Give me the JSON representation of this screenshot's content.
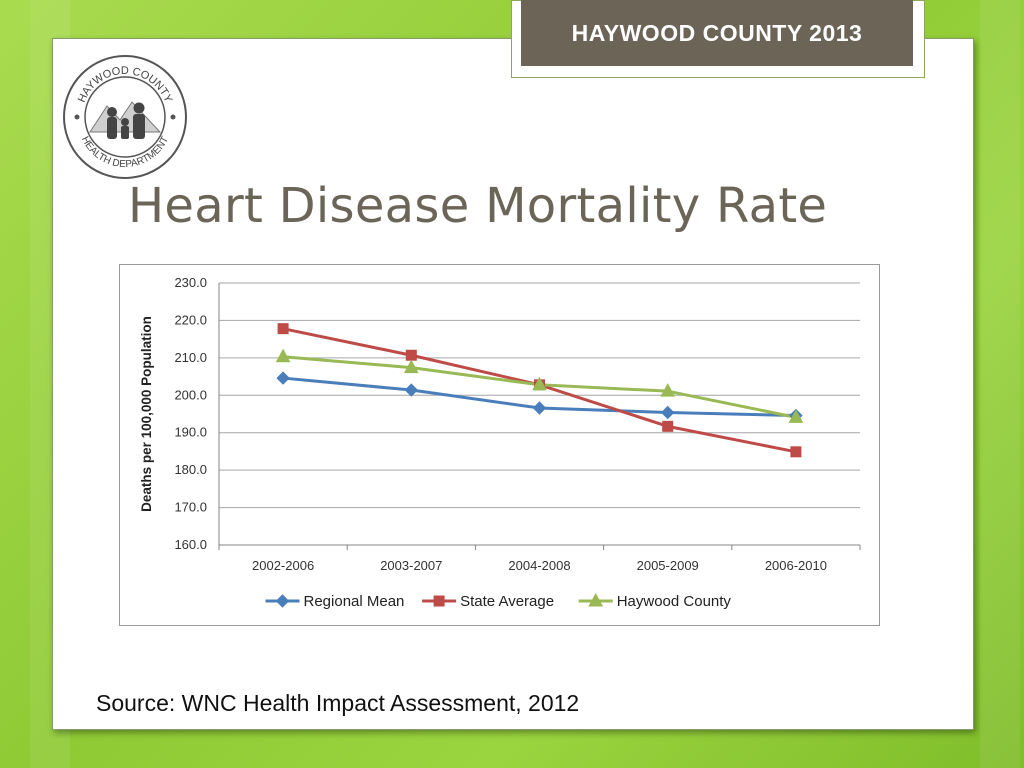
{
  "header": {
    "badge": "HAYWOOD COUNTY  2013"
  },
  "logo": {
    "text_top": "HAYWOOD COUNTY",
    "text_bottom": "HEALTH DEPARTMENT"
  },
  "slide": {
    "title": "Heart Disease Mortality Rate",
    "source": "Source: WNC Health Impact Assessment, 2012"
  },
  "chart_data": {
    "type": "line",
    "title": "",
    "xlabel": "",
    "ylabel": "Deaths per 100,000 Population",
    "categories": [
      "2002-2006",
      "2003-2007",
      "2004-2008",
      "2005-2009",
      "2006-2010"
    ],
    "ylim": [
      160,
      230
    ],
    "yticks": [
      "160.0",
      "170.0",
      "180.0",
      "190.0",
      "200.0",
      "210.0",
      "220.0",
      "230.0"
    ],
    "grid": true,
    "legend_position": "bottom",
    "series": [
      {
        "name": "Regional Mean",
        "color": "#4a7ebb",
        "marker": "diamond",
        "values": [
          204.6,
          201.4,
          196.6,
          195.4,
          194.6
        ]
      },
      {
        "name": "State Average",
        "color": "#be4b48",
        "marker": "square",
        "values": [
          217.8,
          210.7,
          202.8,
          191.7,
          184.9
        ]
      },
      {
        "name": "Haywood County",
        "color": "#98b954",
        "marker": "triangle",
        "values": [
          210.3,
          207.4,
          202.8,
          201.1,
          194.1
        ]
      }
    ]
  }
}
